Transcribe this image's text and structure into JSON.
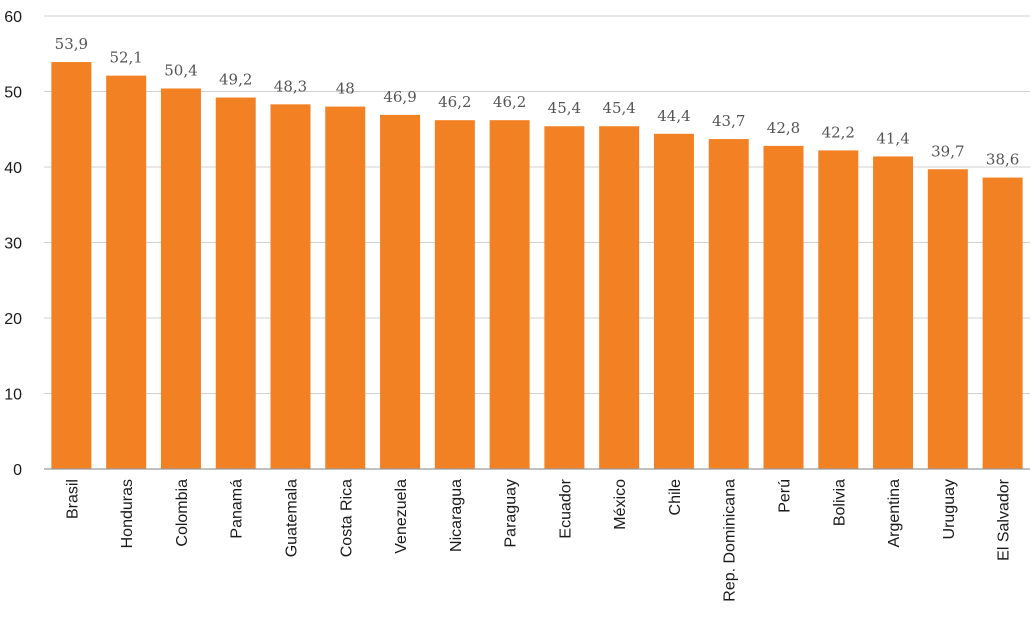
{
  "chart_data": {
    "type": "bar",
    "title": "",
    "xlabel": "",
    "ylabel": "",
    "ylim": [
      0,
      60
    ],
    "yticks": [
      0,
      10,
      20,
      30,
      40,
      50,
      60
    ],
    "grid": true,
    "bar_color": "#f28123",
    "categories": [
      "Brasil",
      "Honduras",
      "Colombia",
      "Panamá",
      "Guatemala",
      "Costa Rica",
      "Venezuela",
      "Nicaragua",
      "Paraguay",
      "Ecuador",
      "México",
      "Chile",
      "Rep. Dominicana",
      "Perú",
      "Bolivia",
      "Argentina",
      "Uruguay",
      "El Salvador"
    ],
    "values": [
      53.9,
      52.1,
      50.4,
      49.2,
      48.3,
      48,
      46.9,
      46.2,
      46.2,
      45.4,
      45.4,
      44.4,
      43.7,
      42.8,
      42.2,
      41.4,
      39.7,
      38.6
    ],
    "value_labels": [
      "53,9",
      "52,1",
      "50,4",
      "49,2",
      "48,3",
      "48",
      "46,9",
      "46,2",
      "46,2",
      "45,4",
      "45,4",
      "44,4",
      "43,7",
      "42,8",
      "42,2",
      "41,4",
      "39,7",
      "38,6"
    ]
  }
}
